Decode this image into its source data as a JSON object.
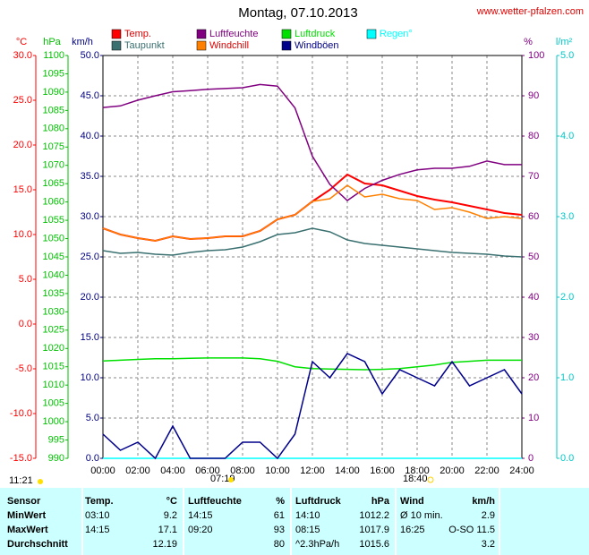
{
  "chart_data": {
    "type": "line",
    "title": "Montag, 07.10.2013",
    "source": "www.wetter-pfalzen.com",
    "x": [
      0,
      1,
      2,
      3,
      4,
      5,
      6,
      7,
      8,
      9,
      10,
      11,
      12,
      13,
      14,
      15,
      16,
      17,
      18,
      19,
      20,
      21,
      22,
      23,
      24
    ],
    "xlim": [
      0,
      24
    ],
    "xticks": [
      {
        "value": 0,
        "label": "00:00"
      },
      {
        "value": 2,
        "label": "02:00"
      },
      {
        "value": 4,
        "label": "04:00"
      },
      {
        "value": 6,
        "label": "06:00"
      },
      {
        "value": 8,
        "label": "08:00"
      },
      {
        "value": 10,
        "label": "10:00"
      },
      {
        "value": 12,
        "label": "12:00"
      },
      {
        "value": 14,
        "label": "14:00"
      },
      {
        "value": 16,
        "label": "16:00"
      },
      {
        "value": 18,
        "label": "18:00"
      },
      {
        "value": 20,
        "label": "20:00"
      },
      {
        "value": 22,
        "label": "22:00"
      },
      {
        "value": 24,
        "label": "24:00"
      }
    ],
    "grid": true,
    "axes": {
      "temp": {
        "label": "°C",
        "color": "#ff0000",
        "lim": [
          -15,
          30
        ],
        "ticks": [
          {
            "value": 30,
            "label": "30.0"
          },
          {
            "value": 25,
            "label": "25.0"
          },
          {
            "value": 20,
            "label": "20.0"
          },
          {
            "value": 15,
            "label": "15.0"
          },
          {
            "value": 10,
            "label": "10.0"
          },
          {
            "value": 5,
            "label": "5.0"
          },
          {
            "value": 0,
            "label": "0.0"
          },
          {
            "value": -5,
            "label": "-5.0"
          },
          {
            "value": -10,
            "label": "-10.0"
          },
          {
            "value": -15,
            "label": "-15.0"
          }
        ]
      },
      "hpa": {
        "label": "hPa",
        "color": "#00c000",
        "lim": [
          990,
          1100
        ],
        "ticks": [
          1100,
          1095,
          1090,
          1085,
          1080,
          1075,
          1070,
          1065,
          1060,
          1055,
          1050,
          1045,
          1040,
          1035,
          1030,
          1025,
          1020,
          1015,
          1010,
          1005,
          1000,
          995,
          990
        ]
      },
      "kmh": {
        "label": "km/h",
        "color": "#000080",
        "lim": [
          0,
          50
        ],
        "ticks": [
          {
            "value": 50,
            "label": "50.0"
          },
          {
            "value": 45,
            "label": "45.0"
          },
          {
            "value": 40,
            "label": "40.0"
          },
          {
            "value": 35,
            "label": "35.0"
          },
          {
            "value": 30,
            "label": "30.0"
          },
          {
            "value": 25,
            "label": "25.0"
          },
          {
            "value": 20,
            "label": "20.0"
          },
          {
            "value": 15,
            "label": "15.0"
          },
          {
            "value": 10,
            "label": "10.0"
          },
          {
            "value": 5,
            "label": "5.0"
          },
          {
            "value": 0,
            "label": "0.0"
          }
        ]
      },
      "pct": {
        "label": "%",
        "color": "#800080",
        "lim": [
          0,
          100
        ],
        "ticks": [
          100,
          90,
          80,
          70,
          60,
          50,
          40,
          30,
          20,
          10,
          0
        ]
      },
      "rain": {
        "label": "l/m²",
        "color": "#00c8c8",
        "lim": [
          0,
          5
        ],
        "ticks": [
          {
            "value": 5,
            "label": "5.0"
          },
          {
            "value": 4,
            "label": "4.0"
          },
          {
            "value": 3,
            "label": "3.0"
          },
          {
            "value": 2,
            "label": "2.0"
          },
          {
            "value": 1,
            "label": "1.0"
          },
          {
            "value": 0,
            "label": "0.0"
          }
        ]
      }
    },
    "series": [
      {
        "name": "Temp.",
        "color": "#ff0000",
        "axis": "temp",
        "values": [
          10.7,
          10.0,
          9.6,
          9.3,
          9.8,
          9.5,
          9.6,
          9.8,
          9.8,
          10.4,
          11.7,
          12.2,
          13.7,
          15.0,
          16.7,
          15.7,
          15.5,
          14.9,
          14.3,
          13.9,
          13.6,
          13.2,
          12.8,
          12.4,
          12.2
        ]
      },
      {
        "name": "Luftfeuchte",
        "color": "#800080",
        "axis": "pct",
        "values": [
          87.1,
          87.5,
          88.9,
          90.0,
          91.0,
          91.3,
          91.6,
          91.8,
          92.0,
          92.8,
          92.4,
          87.0,
          75.0,
          68.0,
          64.0,
          67.0,
          69.0,
          70.5,
          71.6,
          72.0,
          72.0,
          72.5,
          73.8,
          72.9,
          72.9
        ]
      },
      {
        "name": "Luftdruck",
        "color": "#00e000",
        "axis": "hpa",
        "values": [
          1016.6,
          1016.8,
          1017.0,
          1017.2,
          1017.2,
          1017.3,
          1017.4,
          1017.4,
          1017.4,
          1017.2,
          1016.5,
          1015.0,
          1014.5,
          1014.4,
          1014.3,
          1014.2,
          1014.3,
          1014.5,
          1015.0,
          1015.5,
          1016.2,
          1016.5,
          1016.8,
          1016.8,
          1016.8
        ]
      },
      {
        "name": "Regen°",
        "color": "#00ffff",
        "axis": "rain",
        "values": [
          0,
          0,
          0,
          0,
          0,
          0,
          0,
          0,
          0,
          0,
          0,
          0,
          0,
          0,
          0,
          0,
          0,
          0,
          0,
          0,
          0,
          0,
          0,
          0,
          0
        ]
      },
      {
        "name": "Taupunkt",
        "color": "#3a7070",
        "axis": "temp",
        "values": [
          8.2,
          7.9,
          8.0,
          7.8,
          7.7,
          8.0,
          8.2,
          8.3,
          8.6,
          9.2,
          10.0,
          10.2,
          10.7,
          10.3,
          9.4,
          9.0,
          8.8,
          8.6,
          8.4,
          8.2,
          8.0,
          7.9,
          7.8,
          7.6,
          7.5
        ]
      },
      {
        "name": "Windchill",
        "color": "#ff8000",
        "axis": "temp",
        "values": [
          10.7,
          10.0,
          9.6,
          9.3,
          9.8,
          9.5,
          9.6,
          9.8,
          9.8,
          10.4,
          11.7,
          12.2,
          13.7,
          14.0,
          15.5,
          14.2,
          14.5,
          14.0,
          13.8,
          12.8,
          13.0,
          12.5,
          11.8,
          12.0,
          11.8
        ]
      },
      {
        "name": "Windböen",
        "color": "#00008b",
        "axis": "kmh",
        "values": [
          3,
          1,
          2,
          0,
          4,
          0,
          0,
          0,
          2,
          2,
          0,
          3,
          12,
          10,
          13,
          12,
          8,
          11,
          10,
          9,
          12,
          9,
          10,
          11,
          8
        ]
      }
    ],
    "sun": {
      "moon": "11:21",
      "sunrise": "07:19",
      "sunset": "18:40"
    }
  },
  "table": {
    "header": [
      "Sensor",
      "Temp.",
      "°C",
      "Luftfeuchte",
      "%",
      "Luftdruck",
      "hPa",
      "Wind",
      "km/h"
    ],
    "rows": [
      [
        "MinWert",
        "03:10",
        "9.2",
        "14:15",
        "61",
        "14:10",
        "1012.2",
        "Ø 10 min.",
        "2.9"
      ],
      [
        "MaxWert",
        "14:15",
        "17.1",
        "09:20",
        "93",
        "08:15",
        "1017.9",
        "16:25",
        "O-SO 11.5"
      ],
      [
        "Durchschnitt",
        "",
        "12.19",
        "",
        "80",
        "^2.3hPa/h",
        "1015.6",
        "",
        "3.2"
      ]
    ]
  }
}
